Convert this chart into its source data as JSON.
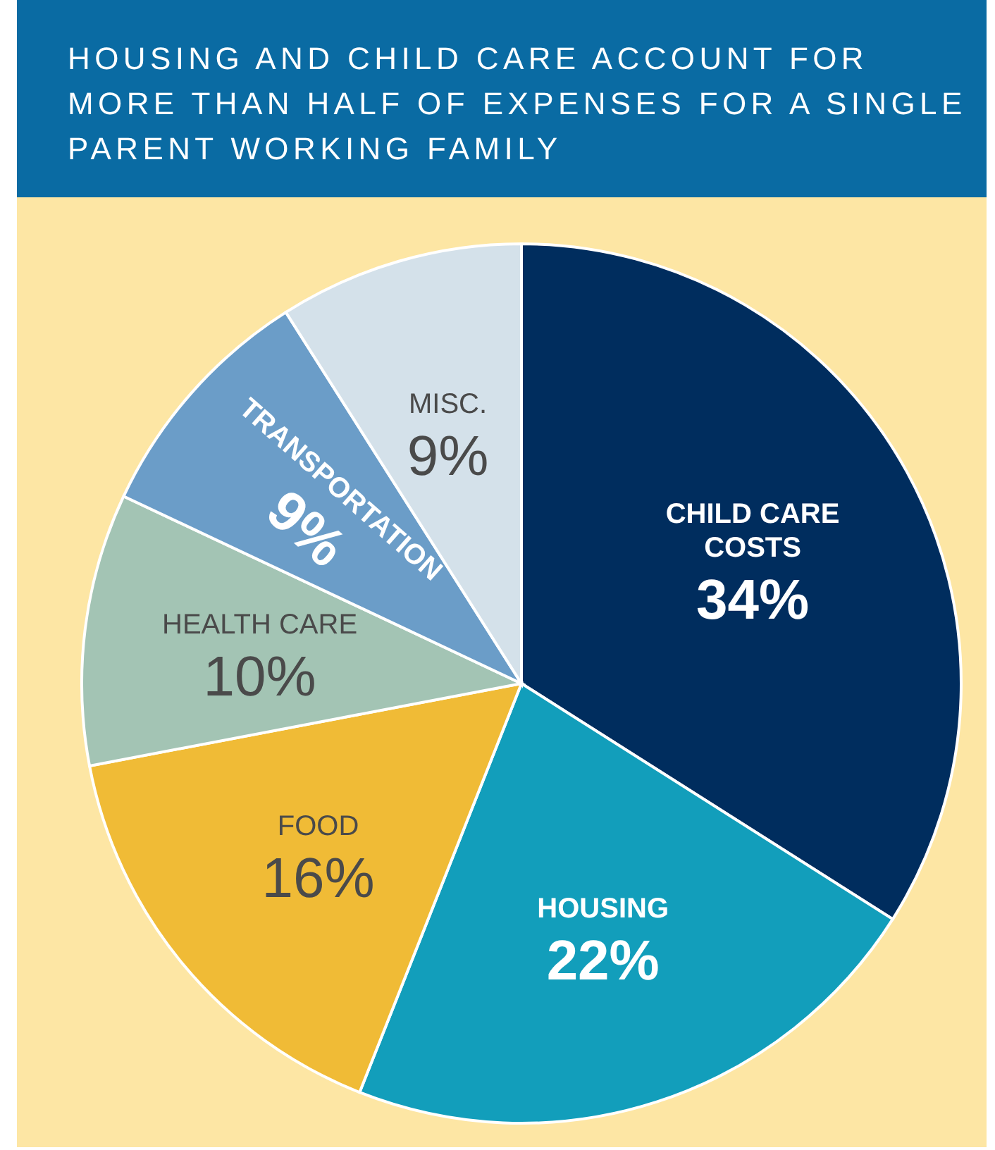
{
  "chart_data": {
    "type": "pie",
    "title": "HOUSING AND CHILD CARE ACCOUNT FOR MORE THAN HALF OF EXPENSES FOR A SINGLE PARENT WORKING FAMILY",
    "categories": [
      "CHILD CARE COSTS",
      "HOUSING",
      "FOOD",
      "HEALTH CARE",
      "TRANSPORTATION",
      "MISC."
    ],
    "values": [
      34,
      22,
      16,
      10,
      9,
      9
    ],
    "value_labels": [
      "34%",
      "22%",
      "16%",
      "10%",
      "9%",
      "9%"
    ],
    "colors": [
      "#002d5e",
      "#129ebb",
      "#f0bb36",
      "#a3c4b4",
      "#6b9dc8",
      "#d4e1ea"
    ]
  }
}
